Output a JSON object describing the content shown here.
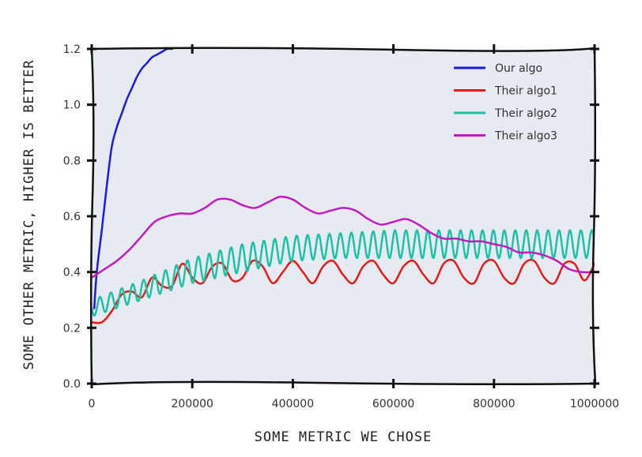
{
  "chart_data": {
    "type": "line",
    "title": "",
    "xlabel": "SOME METRIC WE CHOSE",
    "ylabel": "SOME OTHER METRIC, HIGHER IS BETTER",
    "xlim": [
      0,
      1000000
    ],
    "ylim": [
      0,
      1.2
    ],
    "x_ticks": [
      0,
      200000,
      400000,
      600000,
      800000,
      1000000
    ],
    "x_tick_labels": [
      "0",
      "200000",
      "400000",
      "600000",
      "800000",
      "1000000"
    ],
    "y_ticks": [
      0.0,
      0.2,
      0.4,
      0.6,
      0.8,
      1.0,
      1.2
    ],
    "y_tick_labels": [
      "0.0",
      "0.2",
      "0.4",
      "0.6",
      "0.8",
      "1.0",
      "1.2"
    ],
    "grid": false,
    "legend_position": "top-right",
    "background": "#e8eaf2",
    "series": [
      {
        "name": "Our algo",
        "color": "#1a1ae6",
        "x": [
          5000,
          10000,
          20000,
          30000,
          40000,
          50000,
          60000,
          70000,
          80000,
          90000,
          100000,
          110000,
          120000,
          130000,
          140000,
          150000,
          160000
        ],
        "y": [
          0.27,
          0.4,
          0.55,
          0.71,
          0.85,
          0.92,
          0.97,
          1.02,
          1.06,
          1.1,
          1.13,
          1.15,
          1.17,
          1.18,
          1.19,
          1.2,
          1.2
        ]
      },
      {
        "name": "Their algo1",
        "color": "#e61a1a",
        "x": [
          0,
          20000,
          40000,
          60000,
          80000,
          100000,
          120000,
          140000,
          160000,
          180000,
          200000,
          220000,
          240000,
          260000,
          280000,
          300000,
          320000,
          340000,
          360000,
          380000,
          400000,
          420000,
          440000,
          460000,
          480000,
          500000,
          520000,
          540000,
          560000,
          580000,
          600000,
          620000,
          640000,
          660000,
          680000,
          700000,
          720000,
          740000,
          760000,
          780000,
          800000,
          820000,
          840000,
          860000,
          880000,
          900000,
          920000,
          940000,
          960000,
          980000,
          1000000
        ],
        "y": [
          0.22,
          0.22,
          0.26,
          0.32,
          0.33,
          0.31,
          0.38,
          0.35,
          0.35,
          0.43,
          0.38,
          0.36,
          0.42,
          0.43,
          0.37,
          0.38,
          0.44,
          0.42,
          0.36,
          0.4,
          0.44,
          0.4,
          0.36,
          0.42,
          0.44,
          0.39,
          0.36,
          0.42,
          0.44,
          0.39,
          0.36,
          0.42,
          0.44,
          0.39,
          0.36,
          0.43,
          0.44,
          0.38,
          0.36,
          0.43,
          0.44,
          0.38,
          0.36,
          0.43,
          0.44,
          0.38,
          0.36,
          0.43,
          0.43,
          0.37,
          0.43
        ]
      },
      {
        "name": "Their algo2",
        "color": "#1ac2a8",
        "x_start": 0,
        "x_end": 1000000,
        "y_low": [
          0.24,
          0.3,
          0.36,
          0.4,
          0.44,
          0.45,
          0.45,
          0.45,
          0.45,
          0.45,
          0.45
        ],
        "y_high": [
          0.3,
          0.37,
          0.45,
          0.5,
          0.53,
          0.54,
          0.55,
          0.55,
          0.55,
          0.55,
          0.55
        ],
        "oscillations": 46
      },
      {
        "name": "Their algo3",
        "color": "#c21ac2",
        "x": [
          0,
          25000,
          50000,
          75000,
          100000,
          125000,
          150000,
          175000,
          200000,
          225000,
          250000,
          275000,
          300000,
          325000,
          350000,
          375000,
          400000,
          425000,
          450000,
          475000,
          500000,
          525000,
          550000,
          575000,
          600000,
          625000,
          650000,
          675000,
          700000,
          725000,
          750000,
          775000,
          800000,
          825000,
          850000,
          875000,
          900000,
          925000,
          950000,
          975000,
          1000000
        ],
        "y": [
          0.38,
          0.41,
          0.44,
          0.48,
          0.53,
          0.58,
          0.6,
          0.61,
          0.61,
          0.63,
          0.66,
          0.66,
          0.64,
          0.63,
          0.65,
          0.67,
          0.66,
          0.63,
          0.61,
          0.62,
          0.63,
          0.62,
          0.59,
          0.57,
          0.58,
          0.59,
          0.57,
          0.54,
          0.52,
          0.52,
          0.51,
          0.51,
          0.5,
          0.49,
          0.47,
          0.47,
          0.46,
          0.44,
          0.41,
          0.4,
          0.4
        ]
      }
    ]
  }
}
